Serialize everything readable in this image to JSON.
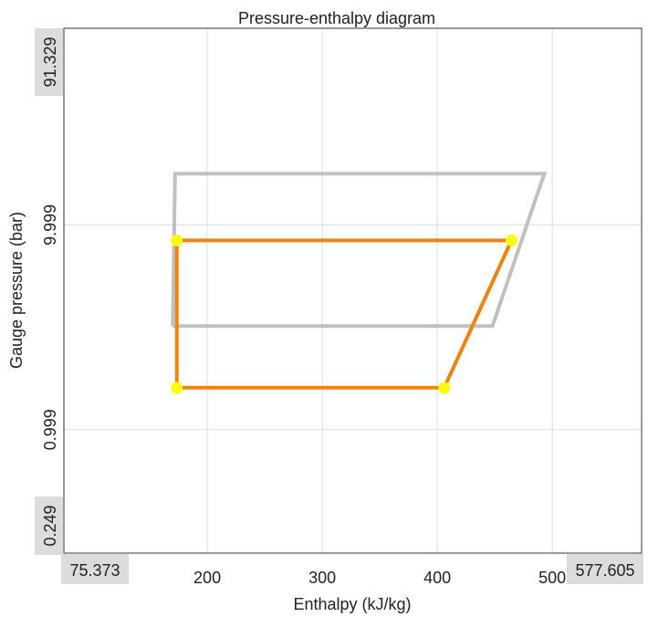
{
  "chart_data": {
    "type": "line",
    "title": "Pressure-enthalpy diagram",
    "xlabel": "Enthalpy (kJ/kg)",
    "ylabel": "Gauge pressure (bar)",
    "x_scale": "linear",
    "y_scale": "log",
    "xlim": [
      75.373,
      577.605
    ],
    "ylim": [
      0.249,
      91.329
    ],
    "x_limit_labels": [
      "75.373",
      "577.605"
    ],
    "y_limit_labels": [
      "0.249",
      "91.329"
    ],
    "x_ticks": [
      {
        "value": 200,
        "label": "200"
      },
      {
        "value": 300,
        "label": "300"
      },
      {
        "value": 400,
        "label": "400"
      },
      {
        "value": 500,
        "label": "500"
      }
    ],
    "y_ticks": [
      {
        "value": 0.999,
        "label": "0.999"
      },
      {
        "value": 9.999,
        "label": "9.999"
      }
    ],
    "grid": true,
    "series": [
      {
        "color": "#c0c0c0",
        "markers": false,
        "points": [
          {
            "x": 170,
            "y": 3.2
          },
          {
            "x": 172,
            "y": 17.8
          },
          {
            "x": 493,
            "y": 17.8
          },
          {
            "x": 448,
            "y": 3.2
          },
          {
            "x": 170,
            "y": 3.2
          }
        ]
      },
      {
        "color": "#f0820f",
        "marker_color": "#ffff00",
        "markers": true,
        "points": [
          {
            "x": 173.5,
            "y": 1.6
          },
          {
            "x": 173.5,
            "y": 8.4
          },
          {
            "x": 464.5,
            "y": 8.4
          },
          {
            "x": 406,
            "y": 1.6
          },
          {
            "x": 173.5,
            "y": 1.6
          }
        ]
      }
    ]
  }
}
